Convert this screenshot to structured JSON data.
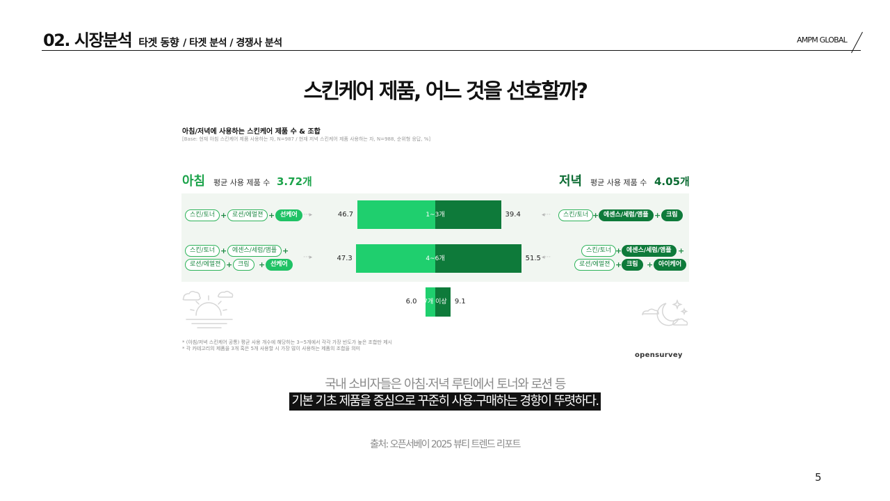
{
  "header": {
    "section": "02. 시장분석",
    "current": "타겟 동향",
    "rest": "/ 타겟 분석 / 경쟁사 분석",
    "brand": "AMPM GLOBAL"
  },
  "slide_title": "스킨케어 제품, 어느 것을 선호할까?",
  "figure": {
    "title": "아침/저녁에 사용하는 스킨케어 제품 수 & 조합",
    "base": "[Base: 현재 아침 스킨케어 제품 사용하는 자, N=987 / 현재 저녁 스킨케어 제품 사용하는 자, N=988, 순위형 응답, %]",
    "morning": {
      "label": "아침",
      "avg_label": "평균 사용 제품 수",
      "avg_value": "3.72개"
    },
    "evening": {
      "label": "저녁",
      "avg_label": "평균 사용 제품 수",
      "avg_value": "4.05개"
    },
    "row1": {
      "left_pills": [
        "스킨/토너",
        "로션/에멀젼",
        "선케어"
      ],
      "right_pills": [
        "스킨/토너",
        "에센스/세럼/앰플",
        "크림"
      ],
      "category": "1~3개",
      "morning_value": 46.7,
      "evening_value": 39.4,
      "morning_text": "46.7",
      "evening_text": "39.4"
    },
    "row2": {
      "left_pills": [
        "스킨/토너",
        "에센스/세럼/앰플",
        "로션/에멀젼",
        "크림",
        "선케어"
      ],
      "right_pills": [
        "스킨/토너",
        "에센스/세럼/앰플",
        "로션/에멀젼",
        "크림",
        "아이케어"
      ],
      "category": "4~6개",
      "morning_value": 47.3,
      "evening_value": 51.5,
      "morning_text": "47.3",
      "evening_text": "51.5"
    },
    "row3": {
      "category": "7개 이상",
      "morning_value": 6.0,
      "evening_value": 9.1,
      "morning_text": "6.0",
      "evening_text": "9.1"
    },
    "plus": "+",
    "note1": "* (아침/저녁 스킨케어 공통) 평균 사용 개수에 해당하는 3~5개에서 각각 가장 빈도가 높은 조합만 제시",
    "note2": "* 각 카테고리의 제품을 3개 혹은 5개 사용할 시 가장 많이 사용하는 제품의 조합을 의미",
    "logo": "opensurvey",
    "colors": {
      "morning": "#1fcf6e",
      "evening": "#0e7a3a"
    }
  },
  "chart_data": {
    "type": "bar",
    "title": "아침/저녁에 사용하는 스킨케어 제품 수 & 조합",
    "categories": [
      "1~3개",
      "4~6개",
      "7개 이상"
    ],
    "series": [
      {
        "name": "아침",
        "values": [
          46.7,
          47.3,
          6.0
        ]
      },
      {
        "name": "저녁",
        "values": [
          39.4,
          51.5,
          9.1
        ]
      }
    ]
  },
  "summary": {
    "line1": "국내 소비자들은 아침·저녁 루틴에서 토너와 로션 등",
    "line2": "기본 기초 제품을 중심으로 꾸준히 사용·구매하는 경향이 뚜렷하다."
  },
  "source": "출처: 오픈서베이 2025 뷰티 트렌드 리포트",
  "page_number": "5",
  "icons": {
    "morning": "sun-icon",
    "evening": "moon-icon"
  }
}
